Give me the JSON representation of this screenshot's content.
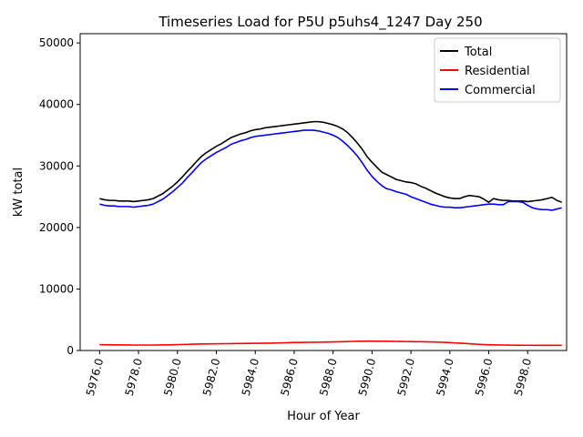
{
  "chart_data": {
    "type": "line",
    "title": "Timeseries Load for P5U p5uhs4_1247  Day 250",
    "xlabel": "Hour of Year",
    "ylabel": "kW total",
    "xlim": [
      5975.0,
      6000.0
    ],
    "ylim": [
      0,
      51500
    ],
    "x_ticks": [
      5976,
      5978,
      5980,
      5982,
      5984,
      5986,
      5988,
      5990,
      5992,
      5994,
      5996,
      5998
    ],
    "x_tick_labels": [
      "5976.0",
      "5978.0",
      "5980.0",
      "5982.0",
      "5984.0",
      "5986.0",
      "5988.0",
      "5990.0",
      "5992.0",
      "5994.0",
      "5996.0",
      "5998.0"
    ],
    "y_ticks": [
      0,
      10000,
      20000,
      30000,
      40000,
      50000
    ],
    "y_tick_labels": [
      "0",
      "10000",
      "20000",
      "30000",
      "40000",
      "50000"
    ],
    "legend_position": "top-right",
    "grid": false,
    "x": [
      5976.0,
      5976.25,
      5976.5,
      5976.75,
      5977.0,
      5977.25,
      5977.5,
      5977.75,
      5978.0,
      5978.25,
      5978.5,
      5978.75,
      5979.0,
      5979.25,
      5979.5,
      5979.75,
      5980.0,
      5980.25,
      5980.5,
      5980.75,
      5981.0,
      5981.25,
      5981.5,
      5981.75,
      5982.0,
      5982.25,
      5982.5,
      5982.75,
      5983.0,
      5983.25,
      5983.5,
      5983.75,
      5984.0,
      5984.25,
      5984.5,
      5984.75,
      5985.0,
      5985.25,
      5985.5,
      5985.75,
      5986.0,
      5986.25,
      5986.5,
      5986.75,
      5987.0,
      5987.25,
      5987.5,
      5987.75,
      5988.0,
      5988.25,
      5988.5,
      5988.75,
      5989.0,
      5989.25,
      5989.5,
      5989.75,
      5990.0,
      5990.25,
      5990.5,
      5990.75,
      5991.0,
      5991.25,
      5991.5,
      5991.75,
      5992.0,
      5992.25,
      5992.5,
      5992.75,
      5993.0,
      5993.25,
      5993.5,
      5993.75,
      5994.0,
      5994.25,
      5994.5,
      5994.75,
      5995.0,
      5995.25,
      5995.5,
      5995.75,
      5996.0,
      5996.25,
      5996.5,
      5996.75,
      5997.0,
      5997.25,
      5997.5,
      5997.75,
      5998.0,
      5998.25,
      5998.5,
      5998.75,
      5999.0,
      5999.25,
      5999.5,
      5999.75
    ],
    "series": [
      {
        "name": "Total",
        "color": "#000000",
        "values": [
          24700,
          24500,
          24400,
          24400,
          24300,
          24300,
          24300,
          24200,
          24300,
          24400,
          24500,
          24700,
          25100,
          25500,
          26100,
          26700,
          27400,
          28200,
          29100,
          29900,
          30800,
          31600,
          32200,
          32700,
          33200,
          33600,
          34100,
          34600,
          34900,
          35200,
          35400,
          35700,
          35900,
          36000,
          36200,
          36300,
          36400,
          36500,
          36600,
          36700,
          36800,
          36900,
          37000,
          37100,
          37200,
          37200,
          37100,
          36900,
          36700,
          36400,
          36000,
          35400,
          34600,
          33700,
          32700,
          31500,
          30600,
          29800,
          29000,
          28600,
          28200,
          27800,
          27600,
          27400,
          27300,
          27100,
          26700,
          26400,
          26000,
          25600,
          25300,
          25000,
          24800,
          24700,
          24700,
          25000,
          25200,
          25100,
          25000,
          24600,
          24100,
          24700,
          24500,
          24400,
          24400,
          24300,
          24300,
          24300,
          24200,
          24300,
          24400,
          24500,
          24700,
          24900,
          24400,
          24100
        ]
      },
      {
        "name": "Residential",
        "color": "#ff0000",
        "values": [
          950,
          940,
          930,
          920,
          910,
          900,
          900,
          890,
          890,
          890,
          890,
          890,
          900,
          910,
          920,
          940,
          960,
          980,
          1000,
          1020,
          1040,
          1060,
          1070,
          1080,
          1090,
          1100,
          1110,
          1120,
          1130,
          1140,
          1150,
          1160,
          1170,
          1180,
          1190,
          1200,
          1220,
          1240,
          1260,
          1280,
          1300,
          1310,
          1320,
          1330,
          1340,
          1350,
          1360,
          1380,
          1400,
          1420,
          1440,
          1460,
          1480,
          1500,
          1510,
          1520,
          1520,
          1510,
          1500,
          1500,
          1490,
          1480,
          1470,
          1460,
          1450,
          1440,
          1430,
          1420,
          1400,
          1380,
          1350,
          1320,
          1280,
          1240,
          1200,
          1150,
          1100,
          1050,
          1000,
          960,
          930,
          910,
          900,
          890,
          880,
          870,
          860,
          850,
          850,
          840,
          840,
          840,
          840,
          840,
          840,
          840
        ]
      },
      {
        "name": "Commercial",
        "color": "#0000ff",
        "values": [
          23800,
          23600,
          23500,
          23500,
          23400,
          23400,
          23400,
          23300,
          23400,
          23500,
          23600,
          23800,
          24200,
          24600,
          25200,
          25800,
          26500,
          27200,
          28100,
          28900,
          29800,
          30600,
          31200,
          31700,
          32200,
          32600,
          33000,
          33500,
          33800,
          34100,
          34300,
          34600,
          34800,
          34900,
          35000,
          35100,
          35200,
          35300,
          35400,
          35500,
          35600,
          35700,
          35800,
          35800,
          35800,
          35700,
          35500,
          35300,
          35000,
          34600,
          34000,
          33300,
          32500,
          31600,
          30500,
          29300,
          28300,
          27500,
          26800,
          26300,
          26100,
          25800,
          25600,
          25400,
          25000,
          24700,
          24400,
          24100,
          23800,
          23600,
          23400,
          23300,
          23300,
          23200,
          23200,
          23300,
          23400,
          23500,
          23600,
          23700,
          23800,
          23800,
          23700,
          23700,
          24200,
          24200,
          24200,
          24100,
          23600,
          23200,
          23000,
          22900,
          22900,
          22800,
          23000,
          23200
        ]
      }
    ]
  }
}
